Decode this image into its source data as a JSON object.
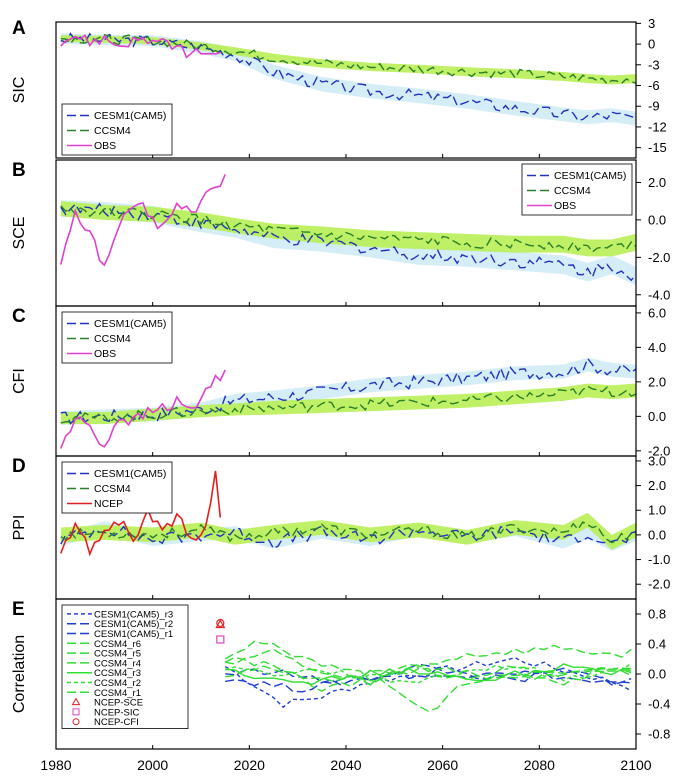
{
  "colors": {
    "cesm": "#2233bb",
    "ccsm": "#2a7f2a",
    "obs": "#e040d0",
    "ncep": "#e02020",
    "cesm_band": "#cdeaf6",
    "ccsm_band": "#b8ee55",
    "cesm_r": "#1f3fd0",
    "ccsm_r": "#33dd33"
  },
  "x_axis": {
    "range": [
      1980,
      2100
    ],
    "ticks": [
      "1980",
      "2000",
      "2020",
      "2040",
      "2060",
      "2080",
      "2100"
    ]
  },
  "chart_data": [
    {
      "type": "line",
      "panel_letter": "A",
      "ylabel": "SIC",
      "ylim": [
        -16.5,
        3.2
      ],
      "yticks": [
        3,
        0,
        -3,
        -6,
        -9,
        -12,
        -15
      ],
      "ytick_labels": [
        "3",
        "0",
        "-3",
        "-6",
        "-9",
        "-12",
        "-15"
      ],
      "legend": [
        {
          "name": "CESM1(CAM5)",
          "color_key": "cesm",
          "dash": "long"
        },
        {
          "name": "CCSM4",
          "color_key": "ccsm",
          "dash": "long"
        },
        {
          "name": "OBS",
          "color_key": "obs",
          "dash": "solid"
        }
      ],
      "series": [
        {
          "name": "CESM1(CAM5)",
          "x": [
            1981,
            1990,
            2000,
            2010,
            2017,
            2025,
            2035,
            2045,
            2055,
            2065,
            2075,
            2085,
            2090,
            2095,
            2100
          ],
          "values": [
            0.8,
            0.6,
            0.5,
            -0.5,
            -1.5,
            -4.0,
            -5.8,
            -6.8,
            -7.5,
            -8.3,
            -9.3,
            -10.2,
            -10.6,
            -10.3,
            -10.8
          ],
          "band": [
            1.5,
            1.5,
            1.6,
            1.8,
            1.9,
            2.0,
            2.1,
            2.1,
            2.1,
            2.1,
            2.1,
            2.0,
            2.0,
            2.0,
            2.0
          ]
        },
        {
          "name": "CCSM4",
          "x": [
            1981,
            1990,
            2000,
            2010,
            2017,
            2025,
            2035,
            2045,
            2055,
            2065,
            2075,
            2085,
            2090,
            2095,
            2100
          ],
          "values": [
            0.8,
            0.7,
            0.5,
            -0.3,
            -1.0,
            -2.0,
            -2.8,
            -3.3,
            -3.6,
            -4.0,
            -4.3,
            -4.7,
            -5.0,
            -5.2,
            -5.0
          ],
          "band": [
            1.0,
            1.0,
            1.0,
            1.1,
            1.1,
            1.2,
            1.2,
            1.2,
            1.2,
            1.3,
            1.3,
            1.3,
            1.3,
            1.3,
            1.3
          ]
        },
        {
          "name": "OBS",
          "x": [
            1981,
            1984,
            1987,
            1990,
            1993,
            1996,
            1999,
            2002,
            2005,
            2008,
            2011,
            2014
          ],
          "values": [
            0.5,
            1.2,
            0.3,
            0.8,
            -0.2,
            0.5,
            0.6,
            0.0,
            -0.5,
            -1.5,
            -1.0,
            -2.0
          ]
        }
      ]
    },
    {
      "type": "line",
      "panel_letter": "B",
      "ylabel": "SCE",
      "ylim": [
        -4.6,
        3.2
      ],
      "yticks": [
        2,
        0,
        -2,
        -4
      ],
      "ytick_labels": [
        "2.0",
        "0.0",
        "-2.0",
        "-4.0"
      ],
      "legend": [
        {
          "name": "CESM1(CAM5)",
          "color_key": "cesm",
          "dash": "long"
        },
        {
          "name": "CCSM4",
          "color_key": "ccsm",
          "dash": "long"
        },
        {
          "name": "OBS",
          "color_key": "obs",
          "dash": "solid"
        }
      ],
      "series": [
        {
          "name": "CESM1(CAM5)",
          "x": [
            1981,
            1990,
            2000,
            2010,
            2017,
            2025,
            2035,
            2045,
            2055,
            2065,
            2075,
            2085,
            2090,
            2095,
            2100
          ],
          "values": [
            0.6,
            0.5,
            0.3,
            -0.2,
            -0.5,
            -1.0,
            -1.2,
            -1.5,
            -1.9,
            -2.0,
            -2.2,
            -2.4,
            -2.8,
            -2.4,
            -3.0
          ],
          "band": [
            0.9,
            0.9,
            0.9,
            0.9,
            0.9,
            1.0,
            1.0,
            1.0,
            1.0,
            1.0,
            1.0,
            1.0,
            1.0,
            1.0,
            1.0
          ]
        },
        {
          "name": "CCSM4",
          "x": [
            1981,
            1990,
            2000,
            2010,
            2017,
            2025,
            2035,
            2045,
            2055,
            2065,
            2075,
            2085,
            2090,
            2095,
            2100
          ],
          "values": [
            0.6,
            0.4,
            0.3,
            0.0,
            -0.3,
            -0.6,
            -0.8,
            -1.0,
            -1.1,
            -1.2,
            -1.3,
            -1.3,
            -1.5,
            -1.5,
            -1.2
          ],
          "band": [
            0.8,
            0.8,
            0.8,
            0.8,
            0.8,
            0.8,
            0.9,
            0.9,
            0.9,
            0.9,
            0.9,
            0.9,
            0.9,
            0.9,
            0.9
          ]
        },
        {
          "name": "OBS",
          "x": [
            1981,
            1984,
            1987,
            1990,
            1993,
            1996,
            1999,
            2002,
            2005,
            2008,
            2011,
            2015
          ],
          "values": [
            -2.2,
            0.5,
            -0.8,
            -2.5,
            -0.3,
            0.8,
            0.5,
            -0.5,
            1.0,
            0.3,
            1.5,
            2.3
          ]
        }
      ]
    },
    {
      "type": "line",
      "panel_letter": "C",
      "ylabel": "CFI",
      "ylim": [
        -2.3,
        6.4
      ],
      "yticks": [
        6,
        4,
        2,
        0,
        -2
      ],
      "ytick_labels": [
        "6.0",
        "4.0",
        "2.0",
        "0.0",
        "-2.0"
      ],
      "legend": [
        {
          "name": "CESM1(CAM5)",
          "color_key": "cesm",
          "dash": "long"
        },
        {
          "name": "CCSM4",
          "color_key": "ccsm",
          "dash": "long"
        },
        {
          "name": "OBS",
          "color_key": "obs",
          "dash": "solid"
        }
      ],
      "series": [
        {
          "name": "CESM1(CAM5)",
          "x": [
            1981,
            1990,
            2000,
            2010,
            2017,
            2025,
            2035,
            2045,
            2055,
            2065,
            2075,
            2085,
            2090,
            2095,
            2100
          ],
          "values": [
            -0.1,
            0.0,
            0.1,
            0.4,
            0.9,
            1.1,
            1.4,
            1.8,
            2.0,
            2.2,
            2.5,
            2.6,
            3.0,
            2.7,
            2.6
          ],
          "band": [
            0.8,
            0.8,
            0.8,
            0.8,
            0.8,
            0.8,
            0.8,
            0.8,
            0.8,
            0.8,
            0.8,
            0.8,
            0.8,
            0.8,
            0.8
          ]
        },
        {
          "name": "CCSM4",
          "x": [
            1981,
            1990,
            2000,
            2010,
            2017,
            2025,
            2035,
            2045,
            2055,
            2065,
            2075,
            2085,
            2090,
            2095,
            2100
          ],
          "values": [
            -0.1,
            -0.1,
            0.1,
            0.3,
            0.4,
            0.5,
            0.6,
            0.7,
            0.8,
            0.9,
            1.1,
            1.3,
            1.5,
            1.4,
            1.5
          ],
          "band": [
            0.7,
            0.7,
            0.7,
            0.7,
            0.7,
            0.8,
            0.8,
            0.8,
            0.8,
            0.8,
            0.8,
            0.8,
            0.8,
            0.8,
            0.8
          ]
        },
        {
          "name": "OBS",
          "x": [
            1981,
            1984,
            1987,
            1990,
            1993,
            1996,
            1999,
            2002,
            2005,
            2008,
            2011,
            2015
          ],
          "values": [
            -1.8,
            -0.2,
            -0.5,
            -1.8,
            0.0,
            -0.3,
            0.2,
            0.5,
            0.8,
            0.3,
            1.5,
            2.7
          ]
        }
      ]
    },
    {
      "type": "line",
      "panel_letter": "D",
      "ylabel": "PPI",
      "ylim": [
        -2.6,
        3.2
      ],
      "yticks": [
        3,
        2,
        1,
        0,
        -1,
        -2
      ],
      "ytick_labels": [
        "3.0",
        "2.0",
        "1.0",
        "0.0",
        "-1.0",
        "-2.0"
      ],
      "legend": [
        {
          "name": "CESM1(CAM5)",
          "color_key": "cesm",
          "dash": "long"
        },
        {
          "name": "CCSM4",
          "color_key": "ccsm",
          "dash": "long"
        },
        {
          "name": "NCEP",
          "color_key": "ncep",
          "dash": "solid"
        }
      ],
      "series": [
        {
          "name": "CESM1(CAM5)",
          "x": [
            1981,
            1990,
            2000,
            2010,
            2017,
            2025,
            2035,
            2045,
            2055,
            2065,
            2075,
            2085,
            2090,
            2095,
            2100
          ],
          "values": [
            -0.2,
            0.3,
            -0.2,
            0.0,
            0.1,
            -0.3,
            0.1,
            -0.2,
            0.2,
            -0.1,
            0.2,
            -0.3,
            0.1,
            -0.4,
            0.0
          ],
          "band": [
            0.5,
            0.5,
            0.5,
            0.5,
            0.5,
            0.5,
            0.5,
            0.5,
            0.5,
            0.5,
            0.5,
            0.5,
            0.5,
            0.5,
            0.5
          ]
        },
        {
          "name": "CCSM4",
          "x": [
            1981,
            1990,
            2000,
            2010,
            2017,
            2025,
            2035,
            2045,
            2055,
            2065,
            2075,
            2085,
            2090,
            2095,
            2100
          ],
          "values": [
            0.0,
            0.1,
            0.0,
            0.2,
            -0.1,
            0.1,
            0.3,
            0.0,
            0.2,
            -0.1,
            0.3,
            0.1,
            0.6,
            -0.3,
            0.2
          ],
          "band": [
            0.6,
            0.6,
            0.6,
            0.6,
            0.6,
            0.6,
            0.6,
            0.6,
            0.6,
            0.6,
            0.6,
            0.6,
            0.6,
            0.6,
            0.6
          ]
        },
        {
          "name": "NCEP",
          "x": [
            1981,
            1984,
            1987,
            1990,
            1993,
            1996,
            1999,
            2002,
            2005,
            2008,
            2011,
            2013,
            2014
          ],
          "values": [
            -0.8,
            0.4,
            -0.6,
            0.2,
            0.6,
            -0.2,
            0.9,
            0.1,
            0.8,
            -0.3,
            0.2,
            2.6,
            0.9
          ]
        }
      ]
    },
    {
      "type": "line",
      "panel_letter": "E",
      "ylabel": "Correlation",
      "ylim": [
        -1.0,
        1.0
      ],
      "yticks": [
        0.8,
        0.4,
        0.0,
        -0.4,
        -0.8
      ],
      "ytick_labels": [
        "0.8",
        "0.4",
        "0.0",
        "-0.4",
        "-0.8"
      ],
      "legend": [
        {
          "name": "CESM1(CAM5)_r3",
          "color_key": "cesm_r",
          "dash": "short"
        },
        {
          "name": "CESM1(CAM5)_r2",
          "color_key": "cesm_r",
          "dash": "long"
        },
        {
          "name": "CESM1(CAM5)_r1",
          "color_key": "cesm_r",
          "dash": "long"
        },
        {
          "name": "CCSM4_r6",
          "color_key": "ccsm_r",
          "dash": "long"
        },
        {
          "name": "CCSM4_r5",
          "color_key": "ccsm_r",
          "dash": "long"
        },
        {
          "name": "CCSM4_r4",
          "color_key": "ccsm_r",
          "dash": "long"
        },
        {
          "name": "CCSM4_r3",
          "color_key": "ccsm_r",
          "dash": "solid"
        },
        {
          "name": "CCSM4_r2",
          "color_key": "ccsm_r",
          "dash": "short"
        },
        {
          "name": "CCSM4_r1",
          "color_key": "ccsm_r",
          "dash": "long"
        },
        {
          "name": "NCEP-SCE",
          "color_key": "ncep",
          "marker": "triangle"
        },
        {
          "name": "NCEP-SIC",
          "color_key": "obs",
          "marker": "square"
        },
        {
          "name": "NCEP-CFI",
          "color_key": "ncep",
          "marker": "circle"
        }
      ],
      "markers": [
        {
          "name": "NCEP-SCE",
          "x": 2014,
          "y": 0.66
        },
        {
          "name": "NCEP-SIC",
          "x": 2014,
          "y": 0.46
        },
        {
          "name": "NCEP-CFI",
          "x": 2014,
          "y": 0.68
        }
      ],
      "series": [
        {
          "name": "CESM1(CAM5)_r3",
          "x": [
            2015,
            2020,
            2027,
            2035,
            2045,
            2055,
            2065,
            2075,
            2085,
            2095,
            2100
          ],
          "values": [
            0.1,
            -0.1,
            -0.4,
            -0.3,
            -0.1,
            0.0,
            0.1,
            0.2,
            0.05,
            -0.1,
            -0.2
          ]
        },
        {
          "name": "CESM1(CAM5)_r2",
          "x": [
            2015,
            2020,
            2030,
            2040,
            2050,
            2060,
            2070,
            2080,
            2090,
            2100
          ],
          "values": [
            -0.05,
            -0.1,
            -0.2,
            -0.1,
            0.0,
            -0.05,
            0.05,
            0.0,
            -0.1,
            -0.15
          ]
        },
        {
          "name": "CESM1(CAM5)_r1",
          "x": [
            2015,
            2025,
            2035,
            2045,
            2055,
            2065,
            2075,
            2085,
            2095,
            2100
          ],
          "values": [
            0.0,
            0.05,
            -0.1,
            -0.05,
            0.1,
            0.0,
            -0.1,
            0.05,
            -0.1,
            -0.05
          ]
        },
        {
          "name": "CCSM4_r6",
          "x": [
            2015,
            2022,
            2030,
            2040,
            2050,
            2058,
            2065,
            2075,
            2085,
            2095,
            2100
          ],
          "values": [
            0.25,
            0.45,
            0.2,
            0.1,
            -0.2,
            -0.5,
            -0.1,
            0.0,
            -0.1,
            0.05,
            0.0
          ]
        },
        {
          "name": "CCSM4_r5",
          "x": [
            2015,
            2025,
            2035,
            2045,
            2055,
            2065,
            2075,
            2085,
            2095,
            2100
          ],
          "values": [
            0.15,
            0.3,
            0.0,
            -0.1,
            0.1,
            0.25,
            0.3,
            0.35,
            0.25,
            0.3
          ]
        },
        {
          "name": "CCSM4_r4",
          "x": [
            2015,
            2025,
            2035,
            2045,
            2055,
            2065,
            2075,
            2085,
            2095,
            2100
          ],
          "values": [
            0.2,
            0.1,
            -0.2,
            -0.1,
            0.05,
            -0.05,
            0.1,
            0.0,
            0.1,
            0.05
          ]
        },
        {
          "name": "CCSM4_r3",
          "x": [
            2015,
            2025,
            2035,
            2045,
            2055,
            2065,
            2075,
            2085,
            2095,
            2100
          ],
          "values": [
            0.05,
            -0.05,
            -0.1,
            0.0,
            0.05,
            -0.1,
            0.0,
            0.1,
            0.0,
            0.05
          ]
        },
        {
          "name": "CCSM4_r2",
          "x": [
            2015,
            2025,
            2035,
            2045,
            2055,
            2065,
            2075,
            2085,
            2095,
            2100
          ],
          "values": [
            0.1,
            0.0,
            0.05,
            -0.05,
            -0.1,
            0.05,
            0.1,
            -0.05,
            0.05,
            0.1
          ]
        },
        {
          "name": "CCSM4_r1",
          "x": [
            2015,
            2025,
            2035,
            2045,
            2055,
            2065,
            2075,
            2085,
            2095,
            2100
          ],
          "values": [
            -0.05,
            0.1,
            -0.1,
            0.0,
            0.1,
            0.0,
            -0.1,
            0.0,
            0.1,
            0.0
          ]
        }
      ]
    }
  ]
}
